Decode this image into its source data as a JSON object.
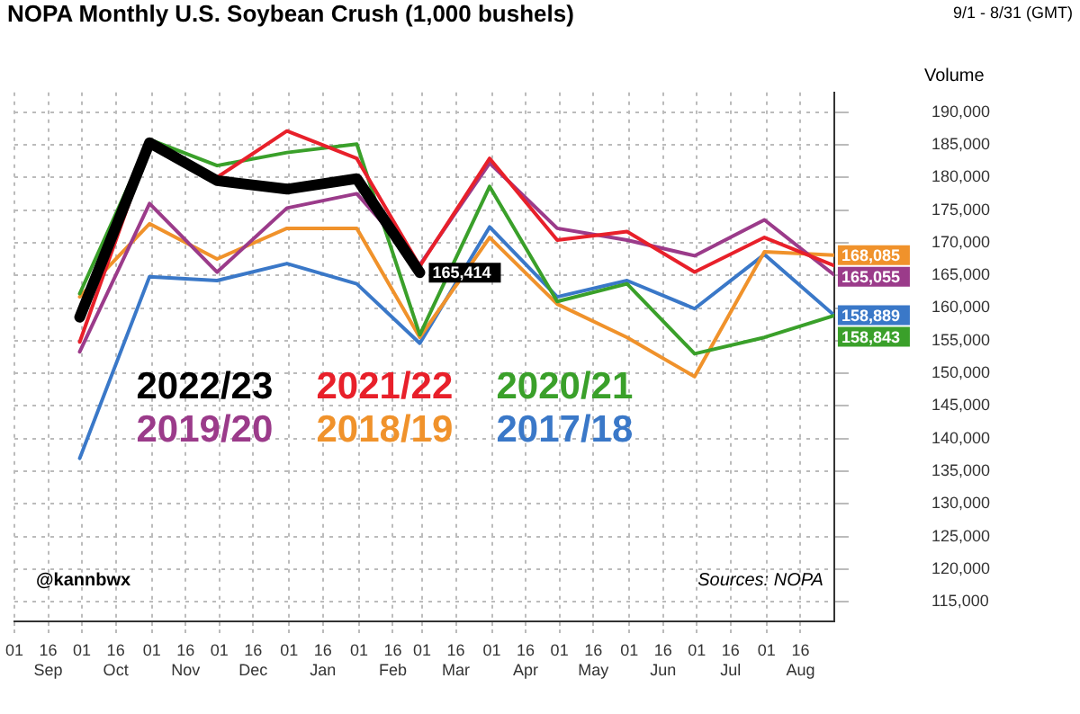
{
  "chart_data": {
    "type": "line",
    "title": "NOPA Monthly U.S. Soybean Crush (1,000 bushels)",
    "ylabel": "Volume",
    "annotations": [
      "9/1 - 8/31 (GMT)",
      "@kannbwx",
      "Sources: NOPA"
    ],
    "x": [
      "2022-09-30",
      "2022-10-31",
      "2022-11-30",
      "2022-12-31",
      "2023-01-31",
      "2023-02-28",
      "2023-03-31",
      "2023-04-30",
      "2023-05-31",
      "2023-06-30",
      "2023-07-31",
      "2023-08-31"
    ],
    "xlim": [
      "2022-09-01",
      "2023-08-31"
    ],
    "xticks": [
      {
        "value": "2022-09-01",
        "label": "01"
      },
      {
        "value": "2022-09-16",
        "label": "16\nSep"
      },
      {
        "value": "2022-10-01",
        "label": "01"
      },
      {
        "value": "2022-10-16",
        "label": "16\nOct"
      },
      {
        "value": "2022-11-01",
        "label": "01"
      },
      {
        "value": "2022-11-16",
        "label": "16\nNov"
      },
      {
        "value": "2022-12-01",
        "label": "01"
      },
      {
        "value": "2022-12-16",
        "label": "16\nDec"
      },
      {
        "value": "2023-01-01",
        "label": "01"
      },
      {
        "value": "2023-01-16",
        "label": "16\nJan"
      },
      {
        "value": "2023-02-01",
        "label": "01"
      },
      {
        "value": "2023-02-16",
        "label": "16\nFeb"
      },
      {
        "value": "2023-03-01",
        "label": "01"
      },
      {
        "value": "2023-03-16",
        "label": "16\nMar"
      },
      {
        "value": "2023-04-01",
        "label": "01"
      },
      {
        "value": "2023-04-16",
        "label": "16\nApr"
      },
      {
        "value": "2023-05-01",
        "label": "01"
      },
      {
        "value": "2023-05-16",
        "label": "16\nMay"
      },
      {
        "value": "2023-06-01",
        "label": "01"
      },
      {
        "value": "2023-06-16",
        "label": "16\nJun"
      },
      {
        "value": "2023-07-01",
        "label": "01"
      },
      {
        "value": "2023-07-16",
        "label": "16\nJul"
      },
      {
        "value": "2023-08-01",
        "label": "01"
      },
      {
        "value": "2023-08-16",
        "label": "16\nAug"
      }
    ],
    "ylim": [
      112000,
      193000
    ],
    "yticks": [
      {
        "value": 115000,
        "label": "115,000"
      },
      {
        "value": 120000,
        "label": "120,000"
      },
      {
        "value": 125000,
        "label": "125,000"
      },
      {
        "value": 130000,
        "label": "130,000"
      },
      {
        "value": 135000,
        "label": "135,000"
      },
      {
        "value": 140000,
        "label": "140,000"
      },
      {
        "value": 145000,
        "label": "145,000"
      },
      {
        "value": 150000,
        "label": "150,000"
      },
      {
        "value": 155000,
        "label": "155,000"
      },
      {
        "value": 160000,
        "label": "160,000"
      },
      {
        "value": 165000,
        "label": "165,000"
      },
      {
        "value": 170000,
        "label": "170,000"
      },
      {
        "value": 175000,
        "label": "175,000"
      },
      {
        "value": 180000,
        "label": "180,000"
      },
      {
        "value": 185000,
        "label": "185,000"
      },
      {
        "value": 190000,
        "label": "190,000"
      }
    ],
    "grid": true,
    "legend": "center",
    "marker": "none",
    "line_style": "solid",
    "series": [
      {
        "name": "2022/23",
        "color": "#000000",
        "values": [
          158600,
          185300,
          179500,
          178200,
          179800,
          165414,
          null,
          null,
          null,
          null,
          null,
          null
        ],
        "value_labels": [
          null,
          null,
          null,
          null,
          null,
          "165,414",
          null,
          null,
          null,
          null,
          null,
          null
        ]
      },
      {
        "name": "2021/22",
        "color": "#e8202a",
        "values": [
          154800,
          184900,
          180000,
          187100,
          182900,
          166400,
          182900,
          170400,
          171700,
          165500,
          170800,
          166500
        ]
      },
      {
        "name": "2020/21",
        "color": "#3aa02a",
        "values": [
          162200,
          185800,
          181800,
          183800,
          185100,
          155900,
          178600,
          161000,
          163700,
          153000,
          155500,
          158843
        ],
        "value_labels": [
          null,
          null,
          null,
          null,
          null,
          null,
          null,
          null,
          null,
          null,
          null,
          "158,843"
        ]
      },
      {
        "name": "2019/20",
        "color": "#9b3b8a",
        "values": [
          153300,
          176000,
          165500,
          175300,
          177500,
          166600,
          182200,
          172200,
          170400,
          168000,
          173500,
          165055
        ],
        "value_labels": [
          null,
          null,
          null,
          null,
          null,
          null,
          null,
          null,
          null,
          null,
          null,
          "165,055"
        ]
      },
      {
        "name": "2018/19",
        "color": "#f0922b",
        "values": [
          161700,
          172900,
          167500,
          172200,
          172200,
          155500,
          170800,
          160600,
          155500,
          149500,
          168600,
          168085
        ],
        "value_labels": [
          null,
          null,
          null,
          null,
          null,
          null,
          null,
          null,
          null,
          null,
          null,
          "168,085"
        ]
      },
      {
        "name": "2017/18",
        "color": "#3a78c8",
        "values": [
          137000,
          164800,
          164200,
          166800,
          163700,
          154600,
          172400,
          161700,
          164200,
          159900,
          168200,
          158889
        ],
        "value_labels": [
          null,
          null,
          null,
          null,
          null,
          null,
          null,
          null,
          null,
          null,
          null,
          "158,889"
        ]
      }
    ]
  }
}
